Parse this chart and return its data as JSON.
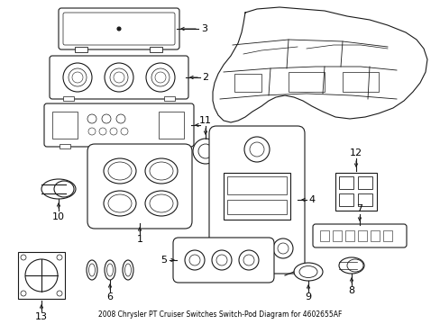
{
  "title": "2008 Chrysler PT Cruiser Switches Switch-Pod Diagram for 4602655AF",
  "bg_color": "#ffffff",
  "line_color": "#1a1a1a",
  "text_color": "#000000",
  "fig_width": 4.89,
  "fig_height": 3.6,
  "dpi": 100
}
